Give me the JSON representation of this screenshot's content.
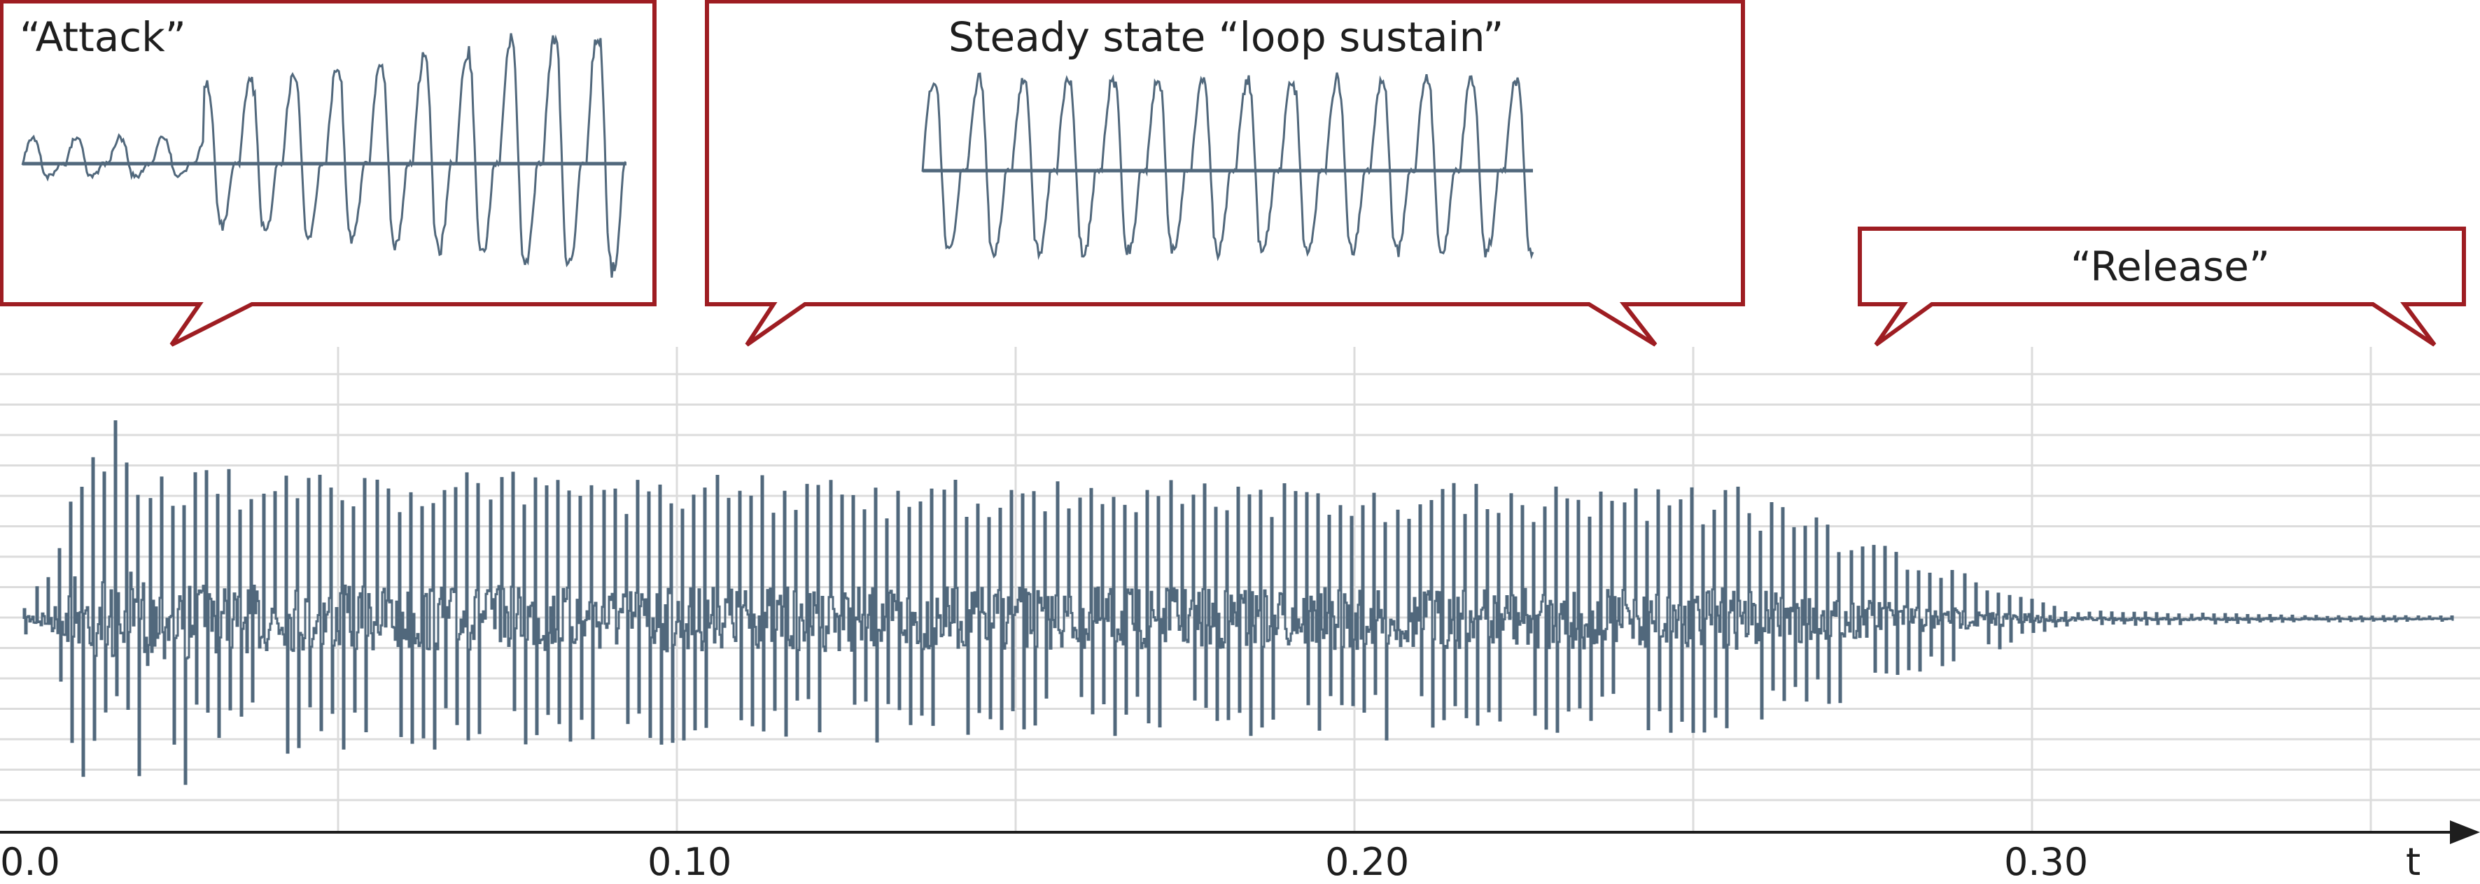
{
  "colors": {
    "waveform": "#51687c",
    "callout_border": "#9e1d22",
    "grid": "#dcdcdc",
    "axis": "#1e1e1e",
    "text": "#1e1e1e",
    "background": "#ffffff"
  },
  "callouts": {
    "attack": {
      "label": "“Attack”"
    },
    "sustain": {
      "label": "Steady state “loop sustain”"
    },
    "release": {
      "label": "“Release”"
    }
  },
  "axis": {
    "ticks": [
      "0.0",
      "0.10",
      "0.20",
      "0.30"
    ],
    "label": "t"
  },
  "envelope": {
    "phases": [
      "attack",
      "sustain",
      "release"
    ]
  }
}
